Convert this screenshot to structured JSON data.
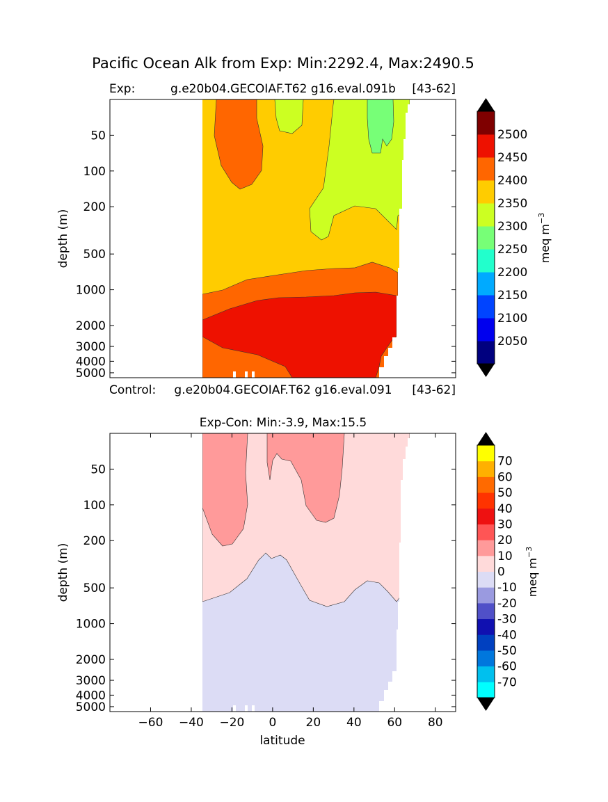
{
  "figure": {
    "suptitle": "Pacific Ocean Alk from Exp: Min:2292.4, Max:2490.5"
  },
  "chart_data": [
    {
      "type": "contour",
      "id": "exp",
      "title_left": "Exp:",
      "title_center": "g.e20b04.GECOIAF.T62 g16.eval.091b",
      "title_right": "[43-62]",
      "xlabel": "",
      "ylabel": "depth (m)",
      "xlim": [
        -80,
        90
      ],
      "ylim": [
        5500,
        25
      ],
      "yscale": "log",
      "yticks": [
        50,
        100,
        200,
        500,
        1000,
        2000,
        3000,
        4000,
        5000
      ],
      "yticklabels": [
        "50",
        "100",
        "200",
        "500",
        "1000",
        "2000",
        "3000",
        "4000",
        "5000"
      ],
      "colorbar": {
        "label": "meq m",
        "label_sup": "−3",
        "levels": [
          2000,
          2050,
          2100,
          2150,
          2200,
          2250,
          2300,
          2350,
          2400,
          2450,
          2500,
          2550
        ],
        "ticks": [
          2050,
          2100,
          2150,
          2200,
          2250,
          2300,
          2350,
          2400,
          2450,
          2500
        ],
        "ticklabels": [
          "2050",
          "2100",
          "2150",
          "2200",
          "2250",
          "2300",
          "2350",
          "2400",
          "2450",
          "2500"
        ],
        "colors": [
          "#00007f",
          "#0000ee",
          "#0044ff",
          "#00aaff",
          "#22ffcc",
          "#77ff77",
          "#ccff22",
          "#ffcc00",
          "#ff6600",
          "#ee1100",
          "#7f0000"
        ],
        "extend_colors": {
          "under": "#000000",
          "over": "#000000"
        }
      }
    },
    {
      "type": "contour",
      "id": "diff",
      "title_center": "Exp-Con: Min:-3.9, Max:15.5",
      "xlabel": "latitude",
      "ylabel": "depth (m)",
      "xlim": [
        -80,
        90
      ],
      "xticks": [
        -60,
        -40,
        -20,
        0,
        20,
        40,
        60,
        80
      ],
      "xticklabels": [
        "−60",
        "−40",
        "−20",
        "0",
        "20",
        "40",
        "60",
        "80"
      ],
      "ylim": [
        5500,
        25
      ],
      "yscale": "log",
      "yticks": [
        50,
        100,
        200,
        500,
        1000,
        2000,
        3000,
        4000,
        5000
      ],
      "yticklabels": [
        "50",
        "100",
        "200",
        "500",
        "1000",
        "2000",
        "3000",
        "4000",
        "5000"
      ],
      "colorbar": {
        "label": "meq m",
        "label_sup": "−3",
        "levels": [
          -80,
          -70,
          -60,
          -50,
          -40,
          -30,
          -20,
          -10,
          0,
          10,
          20,
          30,
          40,
          50,
          60,
          70,
          80
        ],
        "ticks": [
          -70,
          -60,
          -50,
          -40,
          -30,
          -20,
          -10,
          0,
          10,
          20,
          30,
          40,
          50,
          60,
          70
        ],
        "ticklabels": [
          "-70",
          "-60",
          "-50",
          "-40",
          "-30",
          "-20",
          "-10",
          "0",
          "10",
          "20",
          "30",
          "40",
          "50",
          "60",
          "70"
        ],
        "colors": [
          "#00ffff",
          "#00c0ee",
          "#0077dd",
          "#0040c0",
          "#1010b0",
          "#5050c8",
          "#9a9ae0",
          "#dcdcf5",
          "#ffdada",
          "#ff9a9a",
          "#ff5555",
          "#ee1111",
          "#ff3300",
          "#ff6a00",
          "#ffb000",
          "#ffff00"
        ],
        "extend_colors": {
          "under": "#000000",
          "over": "#000000"
        }
      }
    }
  ],
  "between_label": {
    "left": "Control:",
    "center": "g.e20b04.GECOIAF.T62 g16.eval.091",
    "right": "[43-62]"
  }
}
